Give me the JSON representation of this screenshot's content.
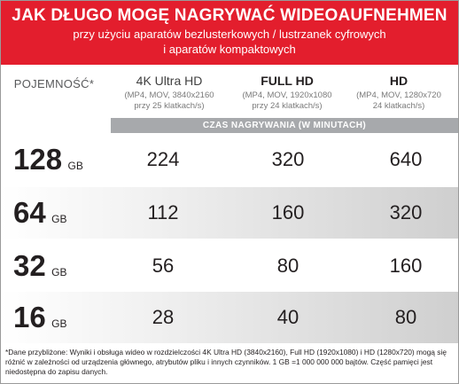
{
  "banner": {
    "title": "JAK DŁUGO MOGĘ NAGRYWAĆ WIDEOAUFNEHMEN",
    "subtitle_line1": "przy użyciu aparatów bezlusterkowych / lustrzanek cyfrowych",
    "subtitle_line2": "i aparatów kompaktowych",
    "color": "#e31e2d"
  },
  "table": {
    "capacity_header": "POJEMNOŚĆ*",
    "columns": [
      {
        "title": "4K Ultra HD",
        "desc1": "(MP4, MOV, 3840x2160",
        "desc2": "przy 25 klatkach/s)"
      },
      {
        "title": "FULL HD",
        "desc1": "(MP4, MOV, 1920x1080",
        "desc2": "przy 24 klatkach/s)"
      },
      {
        "title": "HD",
        "desc1": "(MP4, MOV, 1280x720",
        "desc2": "24 klatkach/s)"
      }
    ],
    "time_bar_label": "CZAS NAGRYWANIA (W MINUTACH)",
    "rows": [
      {
        "capacity": "128",
        "unit": "GB",
        "values": [
          "224",
          "320",
          "640"
        ]
      },
      {
        "capacity": "64",
        "unit": "GB",
        "values": [
          "112",
          "160",
          "320"
        ]
      },
      {
        "capacity": "32",
        "unit": "GB",
        "values": [
          "56",
          "80",
          "160"
        ]
      },
      {
        "capacity": "16",
        "unit": "GB",
        "values": [
          "28",
          "40",
          "80"
        ]
      }
    ]
  },
  "footnote": "*Dane przybliżone: Wyniki i obsługa wideo w rozdzielczości 4K Ultra HD (3840x2160), Full HD (1920x1080) i HD (1280x720) mogą się różnić w zależności od urządzenia głównego, atrybutów pliku i innych czynników. 1 GB =1 000 000 000 bajtów. Część pamięci jest niedostępna do zapisu danych."
}
